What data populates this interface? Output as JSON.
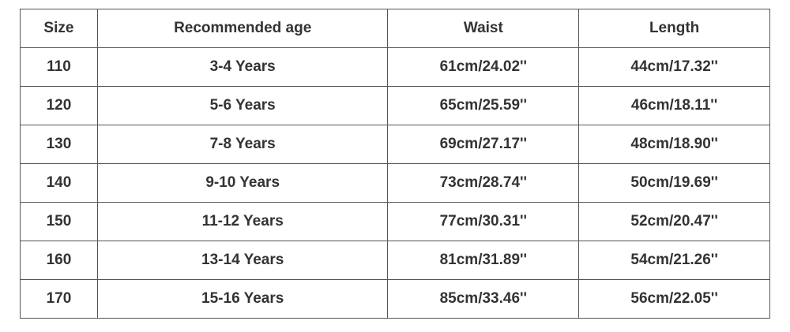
{
  "table": {
    "columns": [
      "Size",
      "Recommended age",
      "Waist",
      "Length"
    ],
    "rows": [
      [
        "110",
        "3-4 Years",
        "61cm/24.02''",
        "44cm/17.32''"
      ],
      [
        "120",
        "5-6 Years",
        "65cm/25.59''",
        "46cm/18.11''"
      ],
      [
        "130",
        "7-8 Years",
        "69cm/27.17''",
        "48cm/18.90''"
      ],
      [
        "140",
        "9-10 Years",
        "73cm/28.74''",
        "50cm/19.69''"
      ],
      [
        "150",
        "11-12 Years",
        "77cm/30.31''",
        "52cm/20.47''"
      ],
      [
        "160",
        "13-14 Years",
        "81cm/31.89''",
        "54cm/21.26''"
      ],
      [
        "170",
        "15-16 Years",
        "85cm/33.46''",
        "56cm/22.05''"
      ]
    ]
  }
}
